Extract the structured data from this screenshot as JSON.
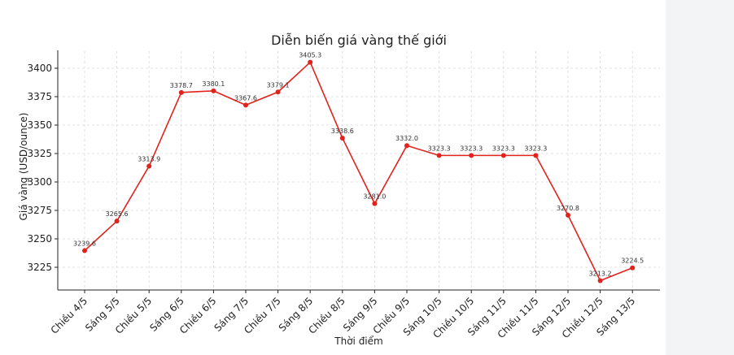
{
  "chart_data": {
    "type": "line",
    "title": "Diễn biến giá vàng thế giới",
    "xlabel": "Thời điểm",
    "ylabel": "Giá vàng (USD/ounce)",
    "categories": [
      "Chiều 4/5",
      "Sáng 5/5",
      "Chiều 5/5",
      "Sáng 6/5",
      "Chiều 6/5",
      "Sáng 7/5",
      "Chiều 7/5",
      "Sáng 8/5",
      "Chiều 8/5",
      "Sáng 9/5",
      "Chiều 9/5",
      "Sáng 10/5",
      "Chiều 10/5",
      "Sáng 11/5",
      "Chiều 11/5",
      "Sáng 12/5",
      "Chiều 12/5",
      "Sáng 13/5"
    ],
    "series": [
      {
        "values": [
          3239.6,
          3265.6,
          3313.9,
          3378.7,
          3380.1,
          3367.6,
          3379.1,
          3405.3,
          3338.6,
          3281.0,
          3332.0,
          3323.3,
          3323.3,
          3323.3,
          3323.3,
          3270.8,
          3213.2,
          3224.5
        ]
      }
    ],
    "data_labels": [
      "3239.6",
      "3265.6",
      "3313.9",
      "3378.7",
      "3380.1",
      "3367.6",
      "3379.1",
      "3405.3",
      "3338.6",
      "3281.0",
      "3332.0",
      "3323.3",
      "3323.3",
      "3323.3",
      "3323.3",
      "3270.8",
      "3213.2",
      "3224.5"
    ],
    "yticks": [
      3225,
      3250,
      3275,
      3300,
      3325,
      3350,
      3375,
      3400
    ],
    "ylim": [
      3205,
      3415
    ],
    "grid": true,
    "colors": {
      "line": "#e0231c",
      "marker": "#e0231c"
    }
  }
}
